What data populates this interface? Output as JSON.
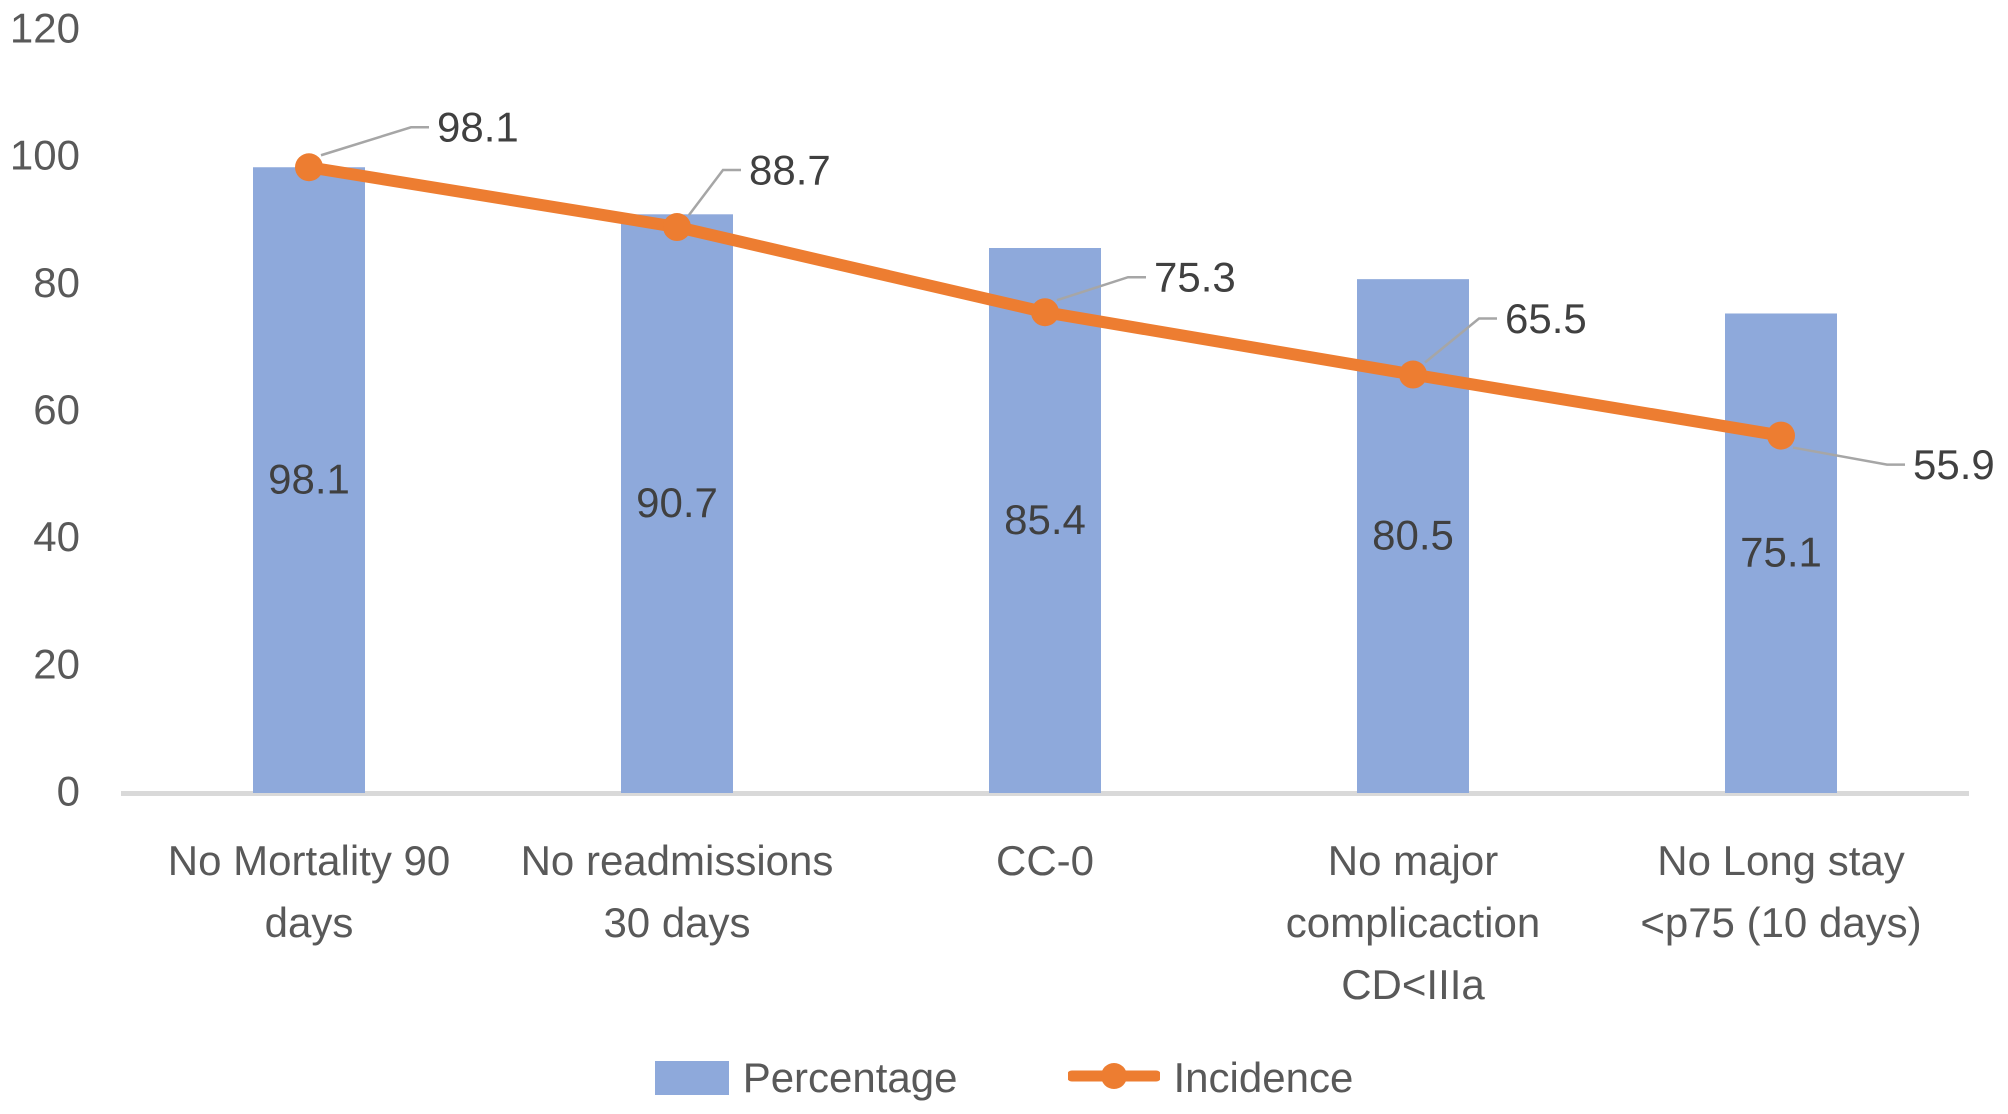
{
  "chart_data": {
    "type": "bar",
    "subtype": "bar-line-combo",
    "title": "",
    "xlabel": "",
    "ylabel": "",
    "categories": [
      "No Mortality 90 days",
      "No readmissions 30 days",
      "CC-0",
      "No major complicaction CD<IIIa",
      "No Long stay <p75 (10 days)"
    ],
    "category_label_lines": [
      [
        "No Mortality 90",
        "days"
      ],
      [
        "No readmissions",
        "30 days"
      ],
      [
        "CC-0"
      ],
      [
        "No major",
        "complicaction",
        "CD<IIIa"
      ],
      [
        "No Long stay",
        "<p75 (10 days)"
      ]
    ],
    "series": [
      {
        "name": "Percentage",
        "type": "bar",
        "values": [
          98.1,
          90.7,
          85.4,
          80.5,
          75.1
        ]
      },
      {
        "name": "Incidence",
        "type": "line",
        "values": [
          98.1,
          88.7,
          75.3,
          65.5,
          55.9
        ]
      }
    ],
    "bar_value_labels": [
      "98.1",
      "90.7",
      "85.4",
      "80.5",
      "75.1"
    ],
    "line_value_labels": [
      "98.1",
      "88.7",
      "75.3",
      "65.5",
      "55.9"
    ],
    "y_axis": {
      "min": 0,
      "max": 120,
      "tick_interval": 20,
      "tick_labels": [
        "0",
        "20",
        "40",
        "60",
        "80",
        "100",
        "120"
      ]
    },
    "grid": false,
    "legend_position": "bottom"
  },
  "colors": {
    "bar_fill": "#8EA9DB",
    "line_stroke": "#ED7D31",
    "axis_line": "#D9D9D9",
    "leader_line": "#A6A6A6",
    "tick_text": "#595959",
    "category_text": "#595959",
    "data_label_text": "#404040",
    "background": "#FFFFFF"
  }
}
